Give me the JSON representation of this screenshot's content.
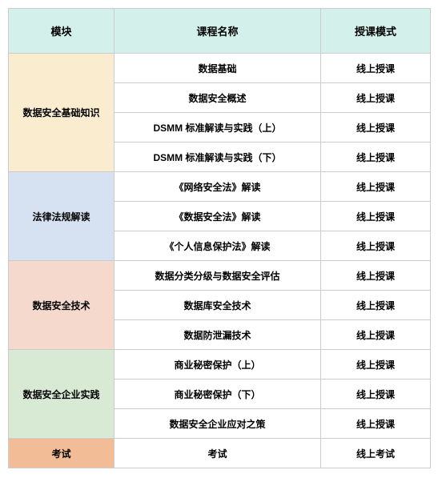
{
  "table": {
    "header": {
      "bg": "#d3f0ea",
      "cells": [
        "模块",
        "课程名称",
        "授课模式"
      ]
    },
    "modules": [
      {
        "label": "数据安全基础知识",
        "bg": "#faecce",
        "rows": [
          {
            "course": "数据基础",
            "mode": "线上授课"
          },
          {
            "course": "数据安全概述",
            "mode": "线上授课"
          },
          {
            "course": "DSMM 标准解读与实践（上）",
            "mode": "线上授课"
          },
          {
            "course": "DSMM 标准解读与实践（下）",
            "mode": "线上授课"
          }
        ]
      },
      {
        "label": "法律法规解读",
        "bg": "#d6e2f2",
        "rows": [
          {
            "course": "《网络安全法》解读",
            "mode": "线上授课"
          },
          {
            "course": "《数据安全法》解读",
            "mode": "线上授课"
          },
          {
            "course": "《个人信息保护法》解读",
            "mode": "线上授课"
          }
        ]
      },
      {
        "label": "数据安全技术",
        "bg": "#f5d9cd",
        "rows": [
          {
            "course": "数据分类分级与数据安全评估",
            "mode": "线上授课"
          },
          {
            "course": "数据库安全技术",
            "mode": "线上授课"
          },
          {
            "course": "数据防泄漏技术",
            "mode": "线上授课"
          }
        ]
      },
      {
        "label": "数据安全企业实践",
        "bg": "#d9ead4",
        "rows": [
          {
            "course": "商业秘密保护（上）",
            "mode": "线上授课"
          },
          {
            "course": "商业秘密保护（下）",
            "mode": "线上授课"
          },
          {
            "course": "数据安全企业应对之策",
            "mode": "线上授课"
          }
        ]
      },
      {
        "label": "考试",
        "bg": "#f2bc96",
        "rows": [
          {
            "course": "考试",
            "mode": "线上考试"
          }
        ]
      }
    ],
    "columns": {
      "module_width": 132,
      "course_width": 258,
      "mode_width": 137
    },
    "colors": {
      "border": "#cccccc",
      "text": "#000000",
      "body_bg": "#ffffff"
    },
    "typography": {
      "header_fontsize": 13,
      "cell_fontsize": 12,
      "font_family": "Microsoft YaHei"
    }
  }
}
